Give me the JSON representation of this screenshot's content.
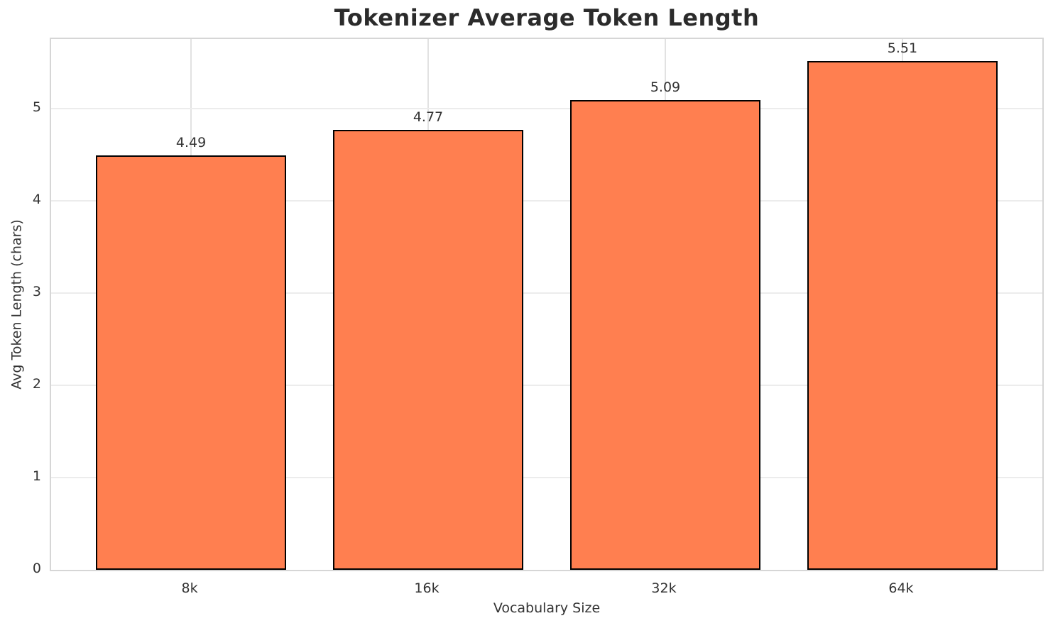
{
  "chart_data": {
    "type": "bar",
    "title": "Tokenizer Average Token Length",
    "xlabel": "Vocabulary Size",
    "ylabel": "Avg Token Length (chars)",
    "categories": [
      "8k",
      "16k",
      "32k",
      "64k"
    ],
    "values": [
      4.49,
      4.77,
      5.09,
      5.51
    ],
    "value_labels": [
      "4.49",
      "4.77",
      "5.09",
      "5.51"
    ],
    "yticks": [
      0,
      1,
      2,
      3,
      4,
      5
    ],
    "ylim": [
      0,
      5.75
    ],
    "grid": true,
    "legend": "none",
    "bar_width_fraction": 0.8,
    "colors": {
      "bar_fill": "#FF7F50",
      "bar_edge": "#000000",
      "title": "#2b2b2b",
      "text": "#333333",
      "grid_h": "#ececec",
      "grid_v": "#e2e2e2",
      "spine": "#d6d6d6",
      "background": "#ffffff"
    }
  }
}
